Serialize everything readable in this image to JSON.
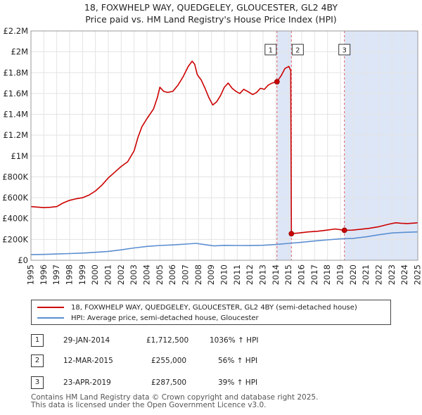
{
  "title": {
    "line1": "18, FOXWHELP WAY, QUEDGELEY, GLOUCESTER, GL2 4BY",
    "line2": "Price paid vs. HM Land Registry's House Price Index (HPI)"
  },
  "colors": {
    "property": "#cc0000",
    "hpi": "#5b8fd1",
    "shade": "#dde6f7",
    "grid": "#e3e3e3",
    "marker_line": "#e06060"
  },
  "chart_data": {
    "type": "line",
    "title": "Price paid vs. HM Land Registry's House Price Index (HPI)",
    "xlabel": "",
    "ylabel": "",
    "xlim": [
      1995,
      2025
    ],
    "ylim": [
      0,
      2200000
    ],
    "y_ticks": [
      {
        "value": 0,
        "label": "£0"
      },
      {
        "value": 200000,
        "label": "£200K"
      },
      {
        "value": 400000,
        "label": "£400K"
      },
      {
        "value": 600000,
        "label": "£600K"
      },
      {
        "value": 800000,
        "label": "£800K"
      },
      {
        "value": 1000000,
        "label": "£1M"
      },
      {
        "value": 1200000,
        "label": "£1.2M"
      },
      {
        "value": 1400000,
        "label": "£1.4M"
      },
      {
        "value": 1600000,
        "label": "£1.6M"
      },
      {
        "value": 1800000,
        "label": "£1.8M"
      },
      {
        "value": 2000000,
        "label": "£2M"
      },
      {
        "value": 2200000,
        "label": "£2.2M"
      }
    ],
    "x_ticks": [
      "1995",
      "1996",
      "1997",
      "1998",
      "1999",
      "2000",
      "2001",
      "2002",
      "2003",
      "2004",
      "2005",
      "2006",
      "2007",
      "2008",
      "2009",
      "2010",
      "2011",
      "2012",
      "2013",
      "2014",
      "2015",
      "2016",
      "2017",
      "2018",
      "2019",
      "2020",
      "2021",
      "2022",
      "2023",
      "2024",
      "2025"
    ],
    "shaded_ranges": [
      [
        2014.08,
        2015.2
      ],
      [
        2019.31,
        2025.0
      ]
    ],
    "series": [
      {
        "name": "18, FOXWHELP WAY, QUEDGELEY, GLOUCESTER, GL2 4BY (semi-detached house)",
        "color": "#cc0000",
        "points": [
          [
            1995.0,
            515000
          ],
          [
            1995.5,
            510000
          ],
          [
            1996.0,
            505000
          ],
          [
            1996.5,
            508000
          ],
          [
            1997.0,
            515000
          ],
          [
            1997.5,
            550000
          ],
          [
            1998.0,
            575000
          ],
          [
            1998.5,
            590000
          ],
          [
            1999.0,
            600000
          ],
          [
            1999.5,
            625000
          ],
          [
            2000.0,
            665000
          ],
          [
            2000.5,
            720000
          ],
          [
            2001.0,
            790000
          ],
          [
            2001.5,
            845000
          ],
          [
            2002.0,
            900000
          ],
          [
            2002.5,
            945000
          ],
          [
            2003.0,
            1050000
          ],
          [
            2003.3,
            1180000
          ],
          [
            2003.6,
            1280000
          ],
          [
            2004.0,
            1360000
          ],
          [
            2004.5,
            1450000
          ],
          [
            2004.8,
            1560000
          ],
          [
            2005.0,
            1660000
          ],
          [
            2005.3,
            1620000
          ],
          [
            2005.6,
            1610000
          ],
          [
            2006.0,
            1620000
          ],
          [
            2006.4,
            1680000
          ],
          [
            2006.8,
            1760000
          ],
          [
            2007.2,
            1860000
          ],
          [
            2007.5,
            1910000
          ],
          [
            2007.7,
            1880000
          ],
          [
            2007.9,
            1780000
          ],
          [
            2008.2,
            1730000
          ],
          [
            2008.5,
            1650000
          ],
          [
            2008.8,
            1560000
          ],
          [
            2009.1,
            1490000
          ],
          [
            2009.4,
            1520000
          ],
          [
            2009.7,
            1580000
          ],
          [
            2010.0,
            1660000
          ],
          [
            2010.3,
            1700000
          ],
          [
            2010.6,
            1650000
          ],
          [
            2010.9,
            1620000
          ],
          [
            2011.2,
            1600000
          ],
          [
            2011.5,
            1640000
          ],
          [
            2011.8,
            1620000
          ],
          [
            2012.2,
            1590000
          ],
          [
            2012.5,
            1610000
          ],
          [
            2012.8,
            1650000
          ],
          [
            2013.1,
            1640000
          ],
          [
            2013.4,
            1680000
          ],
          [
            2013.7,
            1700000
          ],
          [
            2014.08,
            1712500
          ],
          [
            2014.4,
            1770000
          ],
          [
            2014.7,
            1840000
          ],
          [
            2015.0,
            1860000
          ],
          [
            2015.15,
            1820000
          ],
          [
            2015.2,
            255000
          ],
          [
            2015.8,
            262000
          ],
          [
            2016.5,
            272000
          ],
          [
            2017.2,
            278000
          ],
          [
            2017.9,
            288000
          ],
          [
            2018.6,
            300000
          ],
          [
            2019.31,
            287500
          ],
          [
            2019.9,
            289000
          ],
          [
            2020.5,
            296000
          ],
          [
            2021.2,
            306000
          ],
          [
            2021.9,
            320000
          ],
          [
            2022.5,
            338000
          ],
          [
            2022.9,
            350000
          ],
          [
            2023.3,
            360000
          ],
          [
            2023.7,
            355000
          ],
          [
            2024.2,
            352000
          ],
          [
            2024.7,
            356000
          ],
          [
            2025.0,
            360000
          ]
        ]
      },
      {
        "name": "HPI: Average price, semi-detached house, Gloucester",
        "color": "#5b8fd1",
        "points": [
          [
            1995.0,
            55000
          ],
          [
            1996.0,
            56000
          ],
          [
            1997.0,
            60000
          ],
          [
            1998.0,
            64000
          ],
          [
            1999.0,
            69000
          ],
          [
            2000.0,
            76000
          ],
          [
            2001.0,
            85000
          ],
          [
            2002.0,
            100000
          ],
          [
            2003.0,
            118000
          ],
          [
            2004.0,
            133000
          ],
          [
            2005.0,
            142000
          ],
          [
            2006.0,
            147000
          ],
          [
            2007.0,
            155000
          ],
          [
            2007.8,
            162000
          ],
          [
            2008.5,
            150000
          ],
          [
            2009.2,
            138000
          ],
          [
            2010.0,
            143000
          ],
          [
            2011.0,
            142000
          ],
          [
            2012.0,
            141000
          ],
          [
            2013.0,
            144000
          ],
          [
            2014.0,
            151000
          ],
          [
            2015.0,
            162000
          ],
          [
            2016.0,
            173000
          ],
          [
            2017.0,
            185000
          ],
          [
            2018.0,
            196000
          ],
          [
            2019.0,
            205000
          ],
          [
            2020.0,
            210000
          ],
          [
            2021.0,
            225000
          ],
          [
            2022.0,
            245000
          ],
          [
            2023.0,
            262000
          ],
          [
            2024.0,
            268000
          ],
          [
            2025.0,
            272000
          ]
        ]
      }
    ],
    "sales_markers": [
      {
        "label": "1",
        "x": 2014.08,
        "y": 1712500
      },
      {
        "label": "2",
        "x": 2015.2,
        "y": 255000
      },
      {
        "label": "3",
        "x": 2019.31,
        "y": 287500
      }
    ]
  },
  "legend": {
    "property_label": "18, FOXWHELP WAY, QUEDGELEY, GLOUCESTER, GL2 4BY (semi-detached house)",
    "hpi_label": "HPI: Average price, semi-detached house, Gloucester"
  },
  "sales": [
    {
      "num": "1",
      "date": "29-JAN-2014",
      "price": "£1,712,500",
      "hpi": "1036% ↑ HPI"
    },
    {
      "num": "2",
      "date": "12-MAR-2015",
      "price": "£255,000",
      "hpi": "56% ↑ HPI"
    },
    {
      "num": "3",
      "date": "23-APR-2019",
      "price": "£287,500",
      "hpi": "39% ↑ HPI"
    }
  ],
  "footer": {
    "line1": "Contains HM Land Registry data © Crown copyright and database right 2025.",
    "line2": "This data is licensed under the Open Government Licence v3.0."
  }
}
